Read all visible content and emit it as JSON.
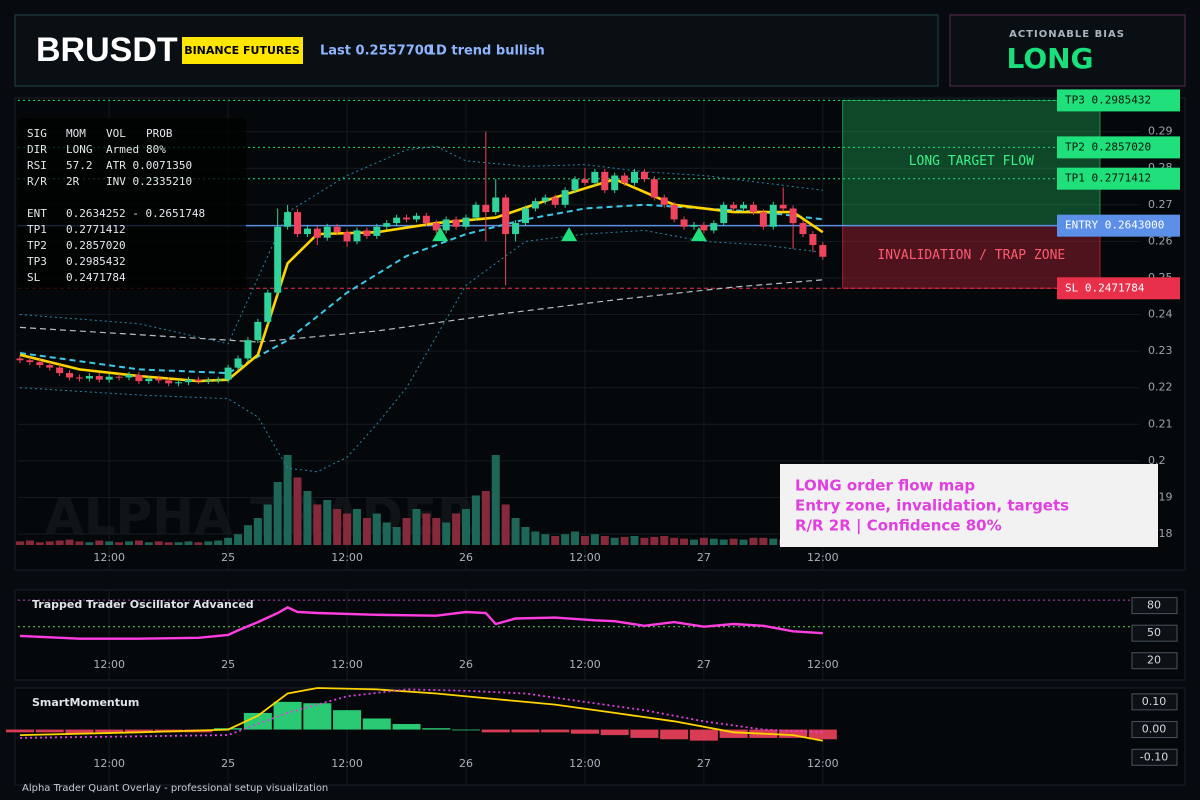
{
  "header": {
    "symbol": "BRUSDT",
    "exchange": "BINANCE FUTURES",
    "last": "Last 0.2557700",
    "trend": "1D trend bullish"
  },
  "bias": {
    "label": "ACTIONABLE BIAS",
    "value": "LONG"
  },
  "info": [
    [
      "SIG",
      "MOM",
      "VOL",
      "PROB"
    ],
    [
      "DIR",
      "LONG",
      "Armed",
      "80%"
    ],
    [
      "RSI",
      "57.2",
      "ATR 0.0071350"
    ],
    [
      "R/R",
      "2R",
      "INV 0.2335210"
    ],
    [
      "ENT",
      "0.2634252 - 0.2651748"
    ],
    [
      "TP1",
      "0.2771412"
    ],
    [
      "TP2",
      "0.2857020"
    ],
    [
      "TP3",
      "0.2985432"
    ],
    [
      "SL",
      "0.2471784"
    ]
  ],
  "note": [
    "LONG order flow map",
    "Entry zone, invalidation, targets",
    "R/R 2R | Confidence 80%"
  ],
  "footer": "Alpha Trader Quant Overlay - professional setup visualization",
  "watermark": "ALPHA TRADER",
  "chart_data": [
    {
      "type": "candlestick",
      "x": [
        0,
        1,
        2,
        3,
        4,
        5,
        6,
        7,
        8,
        9,
        10,
        11,
        12,
        13,
        14,
        15,
        16,
        17,
        18,
        19,
        20,
        21,
        22,
        23,
        24,
        25,
        26,
        27,
        28,
        29,
        30,
        31,
        32,
        33,
        34,
        35,
        36,
        37,
        38,
        39,
        40,
        41,
        42,
        43,
        44,
        45,
        46,
        47,
        48,
        49,
        50,
        51,
        52,
        53,
        54,
        55,
        56,
        57,
        58,
        59,
        60,
        61,
        62,
        63,
        64,
        65,
        66,
        67,
        68,
        69,
        70,
        71,
        72,
        73,
        74,
        75,
        76,
        77,
        78,
        79,
        80,
        81
      ],
      "open": [
        0.228,
        0.2275,
        0.227,
        0.2262,
        0.2255,
        0.224,
        0.2228,
        0.2225,
        0.2232,
        0.2222,
        0.223,
        0.2228,
        0.2235,
        0.2218,
        0.2225,
        0.222,
        0.2212,
        0.2215,
        0.2222,
        0.2218,
        0.222,
        0.2222,
        0.2255,
        0.228,
        0.233,
        0.238,
        0.246,
        0.264,
        0.268,
        0.262,
        0.2635,
        0.261,
        0.264,
        0.2625,
        0.26,
        0.263,
        0.2615,
        0.264,
        0.265,
        0.2665,
        0.266,
        0.267,
        0.265,
        0.263,
        0.266,
        0.264,
        0.2665,
        0.27,
        0.268,
        0.272,
        0.262,
        0.265,
        0.269,
        0.271,
        0.272,
        0.27,
        0.274,
        0.277,
        0.276,
        0.279,
        0.274,
        0.278,
        0.276,
        0.279,
        0.277,
        0.272,
        0.27,
        0.266,
        0.264,
        0.2645,
        0.263,
        0.265,
        0.27,
        0.269,
        0.27,
        0.268,
        0.264,
        0.27,
        0.269,
        0.265,
        0.262,
        0.259
      ],
      "high": [
        0.2288,
        0.2283,
        0.2278,
        0.227,
        0.2263,
        0.2248,
        0.2236,
        0.224,
        0.224,
        0.2238,
        0.2238,
        0.2243,
        0.2243,
        0.2233,
        0.2233,
        0.2228,
        0.2223,
        0.223,
        0.223,
        0.2228,
        0.223,
        0.2263,
        0.2288,
        0.2338,
        0.2388,
        0.2468,
        0.269,
        0.27,
        0.2688,
        0.2643,
        0.2643,
        0.2648,
        0.2648,
        0.2633,
        0.2638,
        0.2638,
        0.2648,
        0.2658,
        0.2673,
        0.2673,
        0.2678,
        0.2678,
        0.2658,
        0.2668,
        0.2668,
        0.2673,
        0.2708,
        0.29,
        0.277,
        0.2728,
        0.2658,
        0.2698,
        0.2718,
        0.2728,
        0.2728,
        0.2748,
        0.2778,
        0.28,
        0.2798,
        0.2798,
        0.2788,
        0.2788,
        0.2798,
        0.2798,
        0.2778,
        0.2728,
        0.2708,
        0.2668,
        0.2653,
        0.2653,
        0.2658,
        0.2708,
        0.2708,
        0.2708,
        0.2708,
        0.2688,
        0.2708,
        0.2748,
        0.2698,
        0.2658,
        0.2628,
        0.2598
      ],
      "low": [
        0.2267,
        0.2262,
        0.2254,
        0.2247,
        0.2232,
        0.222,
        0.2217,
        0.2217,
        0.2214,
        0.2214,
        0.222,
        0.222,
        0.221,
        0.221,
        0.2212,
        0.2204,
        0.2204,
        0.2207,
        0.221,
        0.221,
        0.2212,
        0.2214,
        0.2247,
        0.2272,
        0.2322,
        0.2372,
        0.2452,
        0.2632,
        0.2612,
        0.2612,
        0.259,
        0.2602,
        0.2617,
        0.2585,
        0.2592,
        0.2607,
        0.2607,
        0.2632,
        0.2642,
        0.2652,
        0.2652,
        0.2642,
        0.2622,
        0.2622,
        0.2632,
        0.2632,
        0.2657,
        0.26,
        0.2672,
        0.248,
        0.26,
        0.2642,
        0.2682,
        0.2702,
        0.2692,
        0.2692,
        0.2732,
        0.2752,
        0.2752,
        0.2732,
        0.2732,
        0.2752,
        0.2752,
        0.2762,
        0.2712,
        0.2692,
        0.2652,
        0.2632,
        0.2632,
        0.2622,
        0.2622,
        0.2642,
        0.2682,
        0.2682,
        0.2672,
        0.2632,
        0.2632,
        0.2682,
        0.258,
        0.2612,
        0.257,
        0.255
      ],
      "close": [
        0.2275,
        0.227,
        0.2262,
        0.2255,
        0.224,
        0.2228,
        0.2225,
        0.2232,
        0.2222,
        0.223,
        0.2228,
        0.2235,
        0.2218,
        0.2225,
        0.222,
        0.2212,
        0.2215,
        0.2222,
        0.2218,
        0.222,
        0.2222,
        0.2255,
        0.228,
        0.233,
        0.238,
        0.246,
        0.264,
        0.268,
        0.262,
        0.2635,
        0.261,
        0.264,
        0.2625,
        0.26,
        0.263,
        0.2615,
        0.264,
        0.265,
        0.2665,
        0.266,
        0.267,
        0.265,
        0.263,
        0.266,
        0.264,
        0.2665,
        0.27,
        0.268,
        0.272,
        0.262,
        0.265,
        0.269,
        0.271,
        0.272,
        0.27,
        0.274,
        0.277,
        0.276,
        0.279,
        0.274,
        0.278,
        0.276,
        0.279,
        0.277,
        0.272,
        0.27,
        0.266,
        0.264,
        0.2645,
        0.263,
        0.265,
        0.27,
        0.269,
        0.27,
        0.268,
        0.264,
        0.27,
        0.269,
        0.265,
        0.262,
        0.259,
        0.2558
      ],
      "up_color": "#2fd39b",
      "down_color": "#f0435c",
      "volume": {
        "values": [
          4,
          5,
          3,
          4,
          5,
          6,
          4,
          3,
          5,
          4,
          3,
          4,
          5,
          3,
          4,
          3,
          3,
          4,
          3,
          4,
          5,
          8,
          12,
          22,
          30,
          45,
          70,
          100,
          75,
          60,
          45,
          50,
          40,
          35,
          40,
          30,
          35,
          25,
          20,
          30,
          40,
          35,
          30,
          25,
          35,
          40,
          55,
          60,
          100,
          45,
          30,
          20,
          15,
          12,
          10,
          12,
          15,
          10,
          12,
          10,
          8,
          9,
          10,
          8,
          9,
          10,
          8,
          7,
          6,
          8,
          7,
          6,
          7,
          6,
          8,
          8,
          7,
          6,
          7,
          8,
          9,
          6
        ],
        "ylim": [
          0,
          100
        ],
        "up_color": "#1d6658",
        "down_color": "#86293a"
      },
      "overlays": [
        {
          "color": "#2a86a8",
          "dash": "dot",
          "x": [
            0,
            12,
            21,
            27,
            33,
            39,
            42,
            45,
            51,
            57,
            63,
            69,
            75,
            81
          ],
          "values": [
            0.24,
            0.2375,
            0.232,
            0.268,
            0.278,
            0.285,
            0.286,
            0.282,
            0.2805,
            0.281,
            0.279,
            0.278,
            0.276,
            0.274
          ]
        },
        {
          "color": "#2a86a8",
          "dash": "dot",
          "x": [
            0,
            12,
            21,
            24,
            27,
            30,
            33,
            36,
            39,
            45,
            51,
            57,
            63,
            69,
            75,
            81
          ],
          "values": [
            0.22,
            0.218,
            0.217,
            0.212,
            0.198,
            0.197,
            0.201,
            0.21,
            0.22,
            0.248,
            0.26,
            0.262,
            0.263,
            0.26,
            0.259,
            0.257
          ]
        },
        {
          "color": "#b8bec6",
          "dash": "dash",
          "x": [
            0,
            12,
            24,
            36,
            48,
            60,
            72,
            81
          ],
          "values": [
            0.2365,
            0.2345,
            0.2325,
            0.2355,
            0.24,
            0.244,
            0.2475,
            0.2495
          ]
        },
        {
          "color": "#3cc8e8",
          "dash": "dash",
          "x": [
            0,
            12,
            21,
            27,
            33,
            39,
            45,
            51,
            57,
            63,
            69,
            75,
            81
          ],
          "values": [
            0.2295,
            0.225,
            0.224,
            0.233,
            0.246,
            0.256,
            0.262,
            0.266,
            0.269,
            0.27,
            0.269,
            0.268,
            0.266
          ]
        },
        {
          "color": "#ffd400",
          "dash": "solid",
          "x": [
            0,
            6,
            12,
            18,
            21,
            24,
            27,
            30,
            36,
            42,
            48,
            54,
            60,
            66,
            72,
            78,
            81
          ],
          "values": [
            0.229,
            0.225,
            0.2232,
            0.2218,
            0.2222,
            0.229,
            0.254,
            0.262,
            0.2625,
            0.265,
            0.2665,
            0.272,
            0.277,
            0.27,
            0.268,
            0.268,
            0.2625
          ]
        }
      ],
      "signals": {
        "x": [
          42.4,
          55.4,
          68.5
        ],
        "values": [
          0.2617,
          0.2617,
          0.2617
        ],
        "color": "#1fe07a"
      },
      "levels": [
        {
          "value": 0.2985432,
          "label": "TP3 0.2985432",
          "color": "#1fe07a"
        },
        {
          "value": 0.285702,
          "label": "TP2 0.2857020",
          "color": "#1fe07a"
        },
        {
          "value": 0.2771412,
          "label": "TP1 0.2771412",
          "color": "#1fe07a"
        },
        {
          "value": 0.2643,
          "label": "ENTRY 0.2643000",
          "color": "#5b8fe8"
        },
        {
          "value": 0.2471784,
          "label": "SL 0.2471784",
          "color": "#e8304a"
        }
      ],
      "zones": [
        {
          "label": "LONG TARGET FLOW",
          "x": 83,
          "from": 0.2643,
          "to": 0.2985432,
          "color": "#1fbf5f"
        },
        {
          "label": "INVALIDATION / TRAP ZONE",
          "x": 83,
          "from": 0.2471784,
          "to": 0.2643,
          "color": "#d8283f"
        }
      ],
      "xlim": [
        -0.2,
        113
      ],
      "xticks": [
        {
          "value": 9,
          "label": "12:00"
        },
        {
          "value": 21,
          "label": "25"
        },
        {
          "value": 33,
          "label": "12:00"
        },
        {
          "value": 45,
          "label": "26"
        },
        {
          "value": 57,
          "label": "12:00"
        },
        {
          "value": 69,
          "label": "27"
        },
        {
          "value": 81,
          "label": "12:00"
        }
      ],
      "ylim": [
        0.177,
        0.2992
      ],
      "yticks": [
        0.18,
        0.19,
        0.2,
        0.21,
        0.22,
        0.23,
        0.24,
        0.25,
        0.26,
        0.27,
        0.28,
        0.29
      ]
    },
    {
      "type": "line",
      "title": "Trapped Trader Oscillator Advanced",
      "x": [
        0,
        6,
        12,
        18,
        21,
        22,
        24,
        26,
        27,
        28,
        30,
        36,
        42,
        45,
        47,
        48,
        50,
        54,
        58,
        60,
        63,
        66,
        69,
        72,
        75,
        78,
        81
      ],
      "values": [
        47,
        44,
        44,
        45,
        48,
        53,
        62,
        72,
        78,
        73,
        72,
        70,
        69,
        73,
        72,
        60,
        66,
        67,
        64,
        63,
        58,
        62,
        57,
        60,
        58,
        52,
        50
      ],
      "color": "#ff3de0",
      "levels": [
        {
          "value": 86,
          "color": "#c040c0"
        },
        {
          "value": 57,
          "color": "#5bd35b"
        }
      ],
      "xlim": [
        -0.2,
        113
      ],
      "xticks": [
        {
          "value": 9,
          "label": "12:00"
        },
        {
          "value": 21,
          "label": "25"
        },
        {
          "value": 33,
          "label": "12:00"
        },
        {
          "value": 45,
          "label": "26"
        },
        {
          "value": 57,
          "label": "12:00"
        },
        {
          "value": 69,
          "label": "27"
        },
        {
          "value": 81,
          "label": "12:00"
        }
      ],
      "ylim": [
        -1,
        97
      ],
      "yticks": [
        20,
        50,
        80
      ]
    },
    {
      "type": "bar",
      "title": "SmartMomentum",
      "x": [
        0,
        3,
        6,
        9,
        12,
        15,
        18,
        21,
        24,
        27,
        30,
        33,
        36,
        39,
        42,
        45,
        48,
        51,
        54,
        57,
        60,
        63,
        66,
        69,
        72,
        75,
        78,
        81
      ],
      "values": [
        -0.01,
        -0.01,
        -0.015,
        -0.01,
        -0.01,
        -0.01,
        -0.01,
        0.005,
        0.06,
        0.1,
        0.095,
        0.07,
        0.04,
        0.02,
        0.005,
        0.0,
        -0.01,
        -0.01,
        -0.01,
        -0.015,
        -0.02,
        -0.03,
        -0.035,
        -0.04,
        -0.03,
        -0.03,
        -0.03,
        -0.035
      ],
      "up_color": "#2fe07f",
      "down_color": "#f0435c",
      "lines": [
        {
          "color": "#ffd400",
          "dash": "solid",
          "x": [
            0,
            12,
            21,
            24,
            27,
            30,
            36,
            42,
            48,
            54,
            60,
            66,
            72,
            78,
            81
          ],
          "values": [
            -0.02,
            -0.01,
            0.0,
            0.05,
            0.13,
            0.15,
            0.145,
            0.13,
            0.11,
            0.09,
            0.06,
            0.03,
            -0.01,
            -0.02,
            -0.04
          ]
        },
        {
          "color": "#e040e0",
          "dash": "dot",
          "x": [
            0,
            21,
            27,
            33,
            39,
            45,
            51,
            57,
            63,
            69,
            75,
            81
          ],
          "values": [
            -0.03,
            -0.02,
            0.06,
            0.12,
            0.145,
            0.14,
            0.13,
            0.1,
            0.07,
            0.03,
            0.0,
            -0.01
          ]
        }
      ],
      "xlim": [
        -0.2,
        113
      ],
      "xticks": [
        {
          "value": 9,
          "label": "12:00"
        },
        {
          "value": 21,
          "label": "25"
        },
        {
          "value": 33,
          "label": "12:00"
        },
        {
          "value": 45,
          "label": "26"
        },
        {
          "value": 57,
          "label": "12:00"
        },
        {
          "value": 69,
          "label": "27"
        },
        {
          "value": 81,
          "label": "12:00"
        }
      ],
      "ylim": [
        -0.2,
        0.15
      ],
      "yticks": [
        {
          "value": 0.1,
          "label": "0.10"
        },
        {
          "value": 0,
          "label": "0.00"
        },
        {
          "value": -0.1,
          "label": "-0.10"
        }
      ]
    }
  ]
}
